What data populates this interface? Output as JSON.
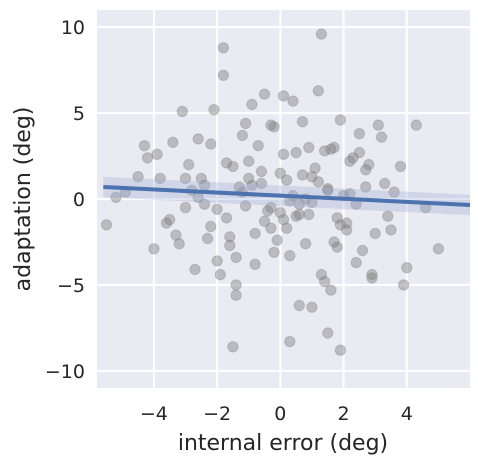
{
  "chart_data": {
    "type": "scatter",
    "title": "",
    "xlabel": "internal error (deg)",
    "ylabel": "adaptation (deg)",
    "xlim": [
      -5.8,
      6.0
    ],
    "ylim": [
      -11.0,
      11.0
    ],
    "x_ticks": [
      -4,
      -2,
      0,
      2,
      4
    ],
    "y_ticks": [
      -10,
      -5,
      0,
      5,
      10
    ],
    "x_tick_labels": [
      "−4",
      "−2",
      "0",
      "2",
      "4"
    ],
    "y_tick_labels": [
      "−10",
      "−5",
      "0",
      "5",
      "10"
    ],
    "grid": true,
    "background_color": "#eaeaf2",
    "point_color": "#808080",
    "line_color": "#4c72b0",
    "band_color": "#a1b3d8",
    "regression": {
      "x": [
        -5.6,
        6.0
      ],
      "y": [
        0.7,
        -0.35
      ],
      "ci_lower": [
        0.1,
        -0.95
      ],
      "ci_upper": [
        1.3,
        0.25
      ]
    },
    "points_x": [
      -5.5,
      -5.2,
      -4.9,
      -4.5,
      -4.3,
      -4.2,
      -4.0,
      -3.8,
      -3.5,
      -3.4,
      -3.2,
      -3.1,
      -3.0,
      -2.9,
      -2.7,
      -2.6,
      -2.4,
      -2.3,
      -2.1,
      -2.0,
      -1.8,
      -1.7,
      -1.5,
      -1.4,
      -1.2,
      -1.1,
      -0.9,
      -0.8,
      -0.6,
      -0.5,
      -0.3,
      -0.2,
      0.0,
      0.1,
      0.3,
      0.4,
      0.6,
      0.7,
      0.9,
      1.0,
      1.2,
      1.3,
      1.5,
      1.6,
      1.8,
      1.9,
      2.1,
      2.2,
      2.4,
      2.5,
      2.7,
      2.9,
      3.1,
      3.3,
      3.5,
      3.8,
      4.0,
      4.3,
      4.6,
      5.0,
      -1.5,
      -1.8,
      0.3,
      1.3,
      -1.4,
      0.1,
      1.5,
      1.9,
      -0.3,
      1.0,
      -2.8,
      -2.2,
      -1.0,
      -0.4,
      0.2,
      0.8,
      1.4,
      2.0,
      2.6,
      3.2,
      -3.6,
      -2.5,
      -1.6,
      -0.7,
      0.5,
      1.1,
      1.7,
      2.3,
      2.9,
      3.6,
      -2.0,
      -1.3,
      -0.5,
      0.0,
      0.4,
      0.9,
      1.5,
      2.1,
      -1.0,
      0.6,
      -3.9,
      -3.3,
      -2.6,
      -1.9,
      -1.1,
      -0.2,
      0.7,
      1.6,
      2.5,
      3.4,
      -2.4,
      -1.7,
      -0.9,
      -0.1,
      0.3,
      1.2,
      1.8,
      2.7,
      3.0,
      3.9,
      -1.4,
      -0.6,
      0.2,
      0.8,
      1.4,
      2.2,
      -2.2,
      -0.8,
      0.5,
      1.7,
      -1.2,
      -0.3,
      0.6,
      1.0,
      1.9,
      2.8,
      -3.0,
      -1.6,
      0.1,
      2.4
    ],
    "points_y": [
      -1.5,
      0.1,
      0.4,
      1.3,
      3.1,
      2.4,
      -2.9,
      1.2,
      -1.2,
      3.3,
      -2.6,
      5.1,
      -0.5,
      2.0,
      -4.1,
      3.5,
      0.8,
      -2.3,
      5.2,
      -3.6,
      7.2,
      -1.1,
      1.9,
      -5.0,
      3.7,
      -0.4,
      5.5,
      -2.0,
      0.9,
      6.1,
      -1.7,
      4.2,
      -0.8,
      2.6,
      -3.3,
      5.7,
      -6.2,
      1.4,
      3.0,
      -0.2,
      6.3,
      -4.4,
      0.6,
      2.9,
      -2.8,
      4.6,
      -1.4,
      0.3,
      -3.7,
      3.8,
      1.7,
      -4.4,
      4.3,
      0.9,
      -1.8,
      1.9,
      -4.0,
      4.3,
      -0.5,
      -2.9,
      -8.6,
      8.8,
      -8.3,
      9.6,
      -5.6,
      6.0,
      -7.8,
      -8.8,
      4.3,
      -6.3,
      0.5,
      -1.6,
      2.2,
      -0.7,
      1.1,
      -2.6,
      2.8,
      0.2,
      -3.0,
      3.6,
      -1.4,
      1.2,
      -2.2,
      3.1,
      -1.0,
      1.8,
      -2.5,
      2.4,
      -4.6,
      0.4,
      -0.6,
      0.7,
      -1.3,
      1.5,
      0.2,
      -0.9,
      0.5,
      -1.8,
      1.2,
      -0.3,
      2.6,
      -2.1,
      0.1,
      -4.4,
      4.4,
      -3.1,
      4.5,
      -5.3,
      2.7,
      -1.0,
      -0.3,
      2.1,
      0.8,
      -2.4,
      -0.1,
      1.0,
      -1.1,
      0.7,
      -2.0,
      -5.0,
      -3.4,
      1.6,
      -1.7,
      0.0,
      -4.8,
      2.2,
      3.2,
      -3.8,
      2.7,
      3.0,
      0.4,
      -0.5,
      -0.9,
      1.3,
      -1.5,
      2.0,
      1.2,
      -2.7,
      -1.2,
      -0.3
    ]
  }
}
